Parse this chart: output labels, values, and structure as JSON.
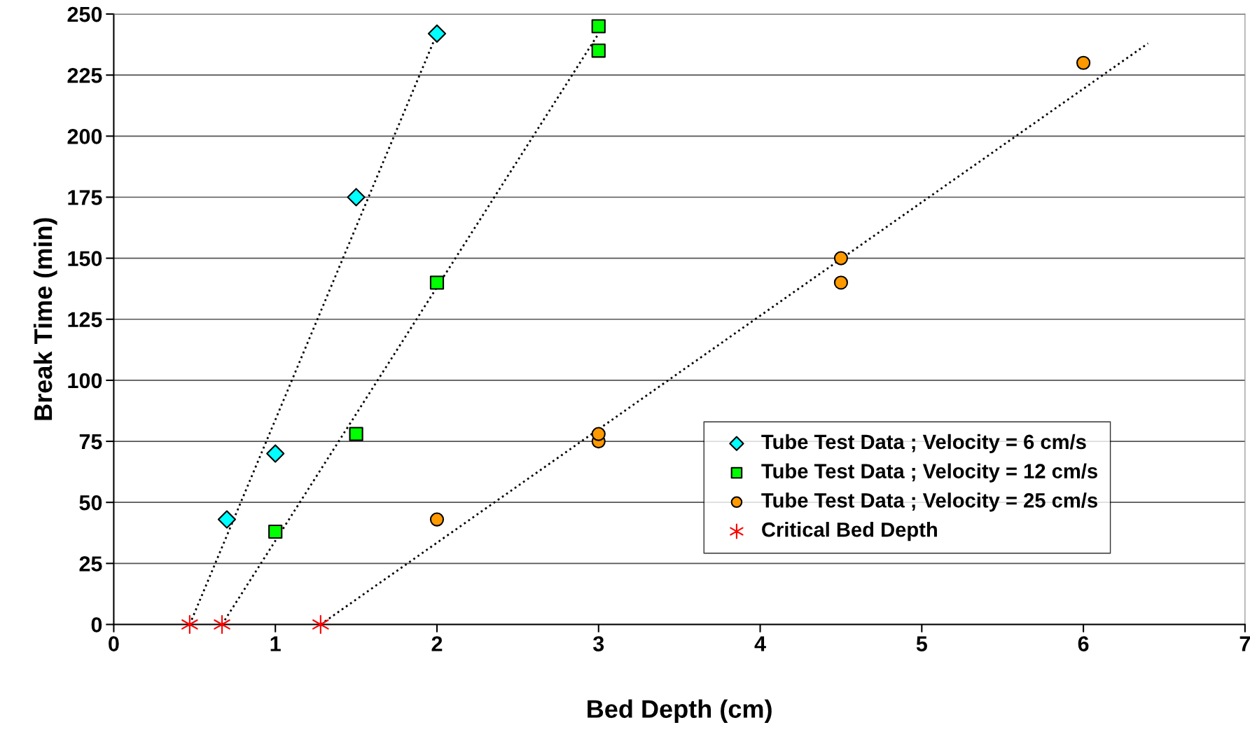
{
  "chart_data": {
    "type": "scatter",
    "xlabel": "Bed Depth (cm)",
    "ylabel": "Break Time (min)",
    "xlim": [
      0,
      7
    ],
    "xticks": [
      0,
      1,
      2,
      3,
      4,
      5,
      6,
      7
    ],
    "ylim": [
      0,
      250
    ],
    "yticks": [
      0,
      25,
      50,
      75,
      100,
      125,
      150,
      175,
      200,
      225,
      250
    ],
    "grid": "y",
    "legend": "bottom right",
    "series": [
      {
        "name": "Tube Test Data ; Velocity = 6 cm/s",
        "color": "#00ffff",
        "marker": "diamond",
        "x": [
          0.7,
          1,
          1.5,
          2
        ],
        "values": [
          43,
          70,
          175,
          242
        ]
      },
      {
        "name": "Tube Test Data ; Velocity = 12 cm/s",
        "color": "#00ff00",
        "marker": "square",
        "x": [
          1,
          1.5,
          2,
          3,
          3
        ],
        "values": [
          38,
          78,
          140,
          235,
          245
        ]
      },
      {
        "name": "Tube Test Data ; Velocity = 25 cm/s",
        "color": "#ff9900",
        "marker": "circle",
        "x": [
          2,
          3,
          3,
          4.5,
          4.5,
          6
        ],
        "values": [
          43,
          75,
          78,
          140,
          150,
          230
        ]
      },
      {
        "name": "Critical Bed Depth",
        "color": "#ff0000",
        "marker": "cross",
        "x": [
          0.47,
          0.67,
          1.28
        ],
        "values": [
          0,
          0,
          0
        ]
      },
      {
        "type": "line",
        "color": "#000000",
        "line_style": "dotted",
        "marker": "none",
        "x": [
          0.47,
          2.0
        ],
        "values": [
          0,
          242
        ]
      },
      {
        "type": "line",
        "color": "#000000",
        "line_style": "dotted",
        "marker": "none",
        "x": [
          0.67,
          3.0
        ],
        "values": [
          0,
          242
        ]
      },
      {
        "type": "line",
        "color": "#000000",
        "line_style": "dotted",
        "marker": "none",
        "x": [
          1.28,
          6.4
        ],
        "values": [
          0,
          238
        ]
      }
    ]
  }
}
